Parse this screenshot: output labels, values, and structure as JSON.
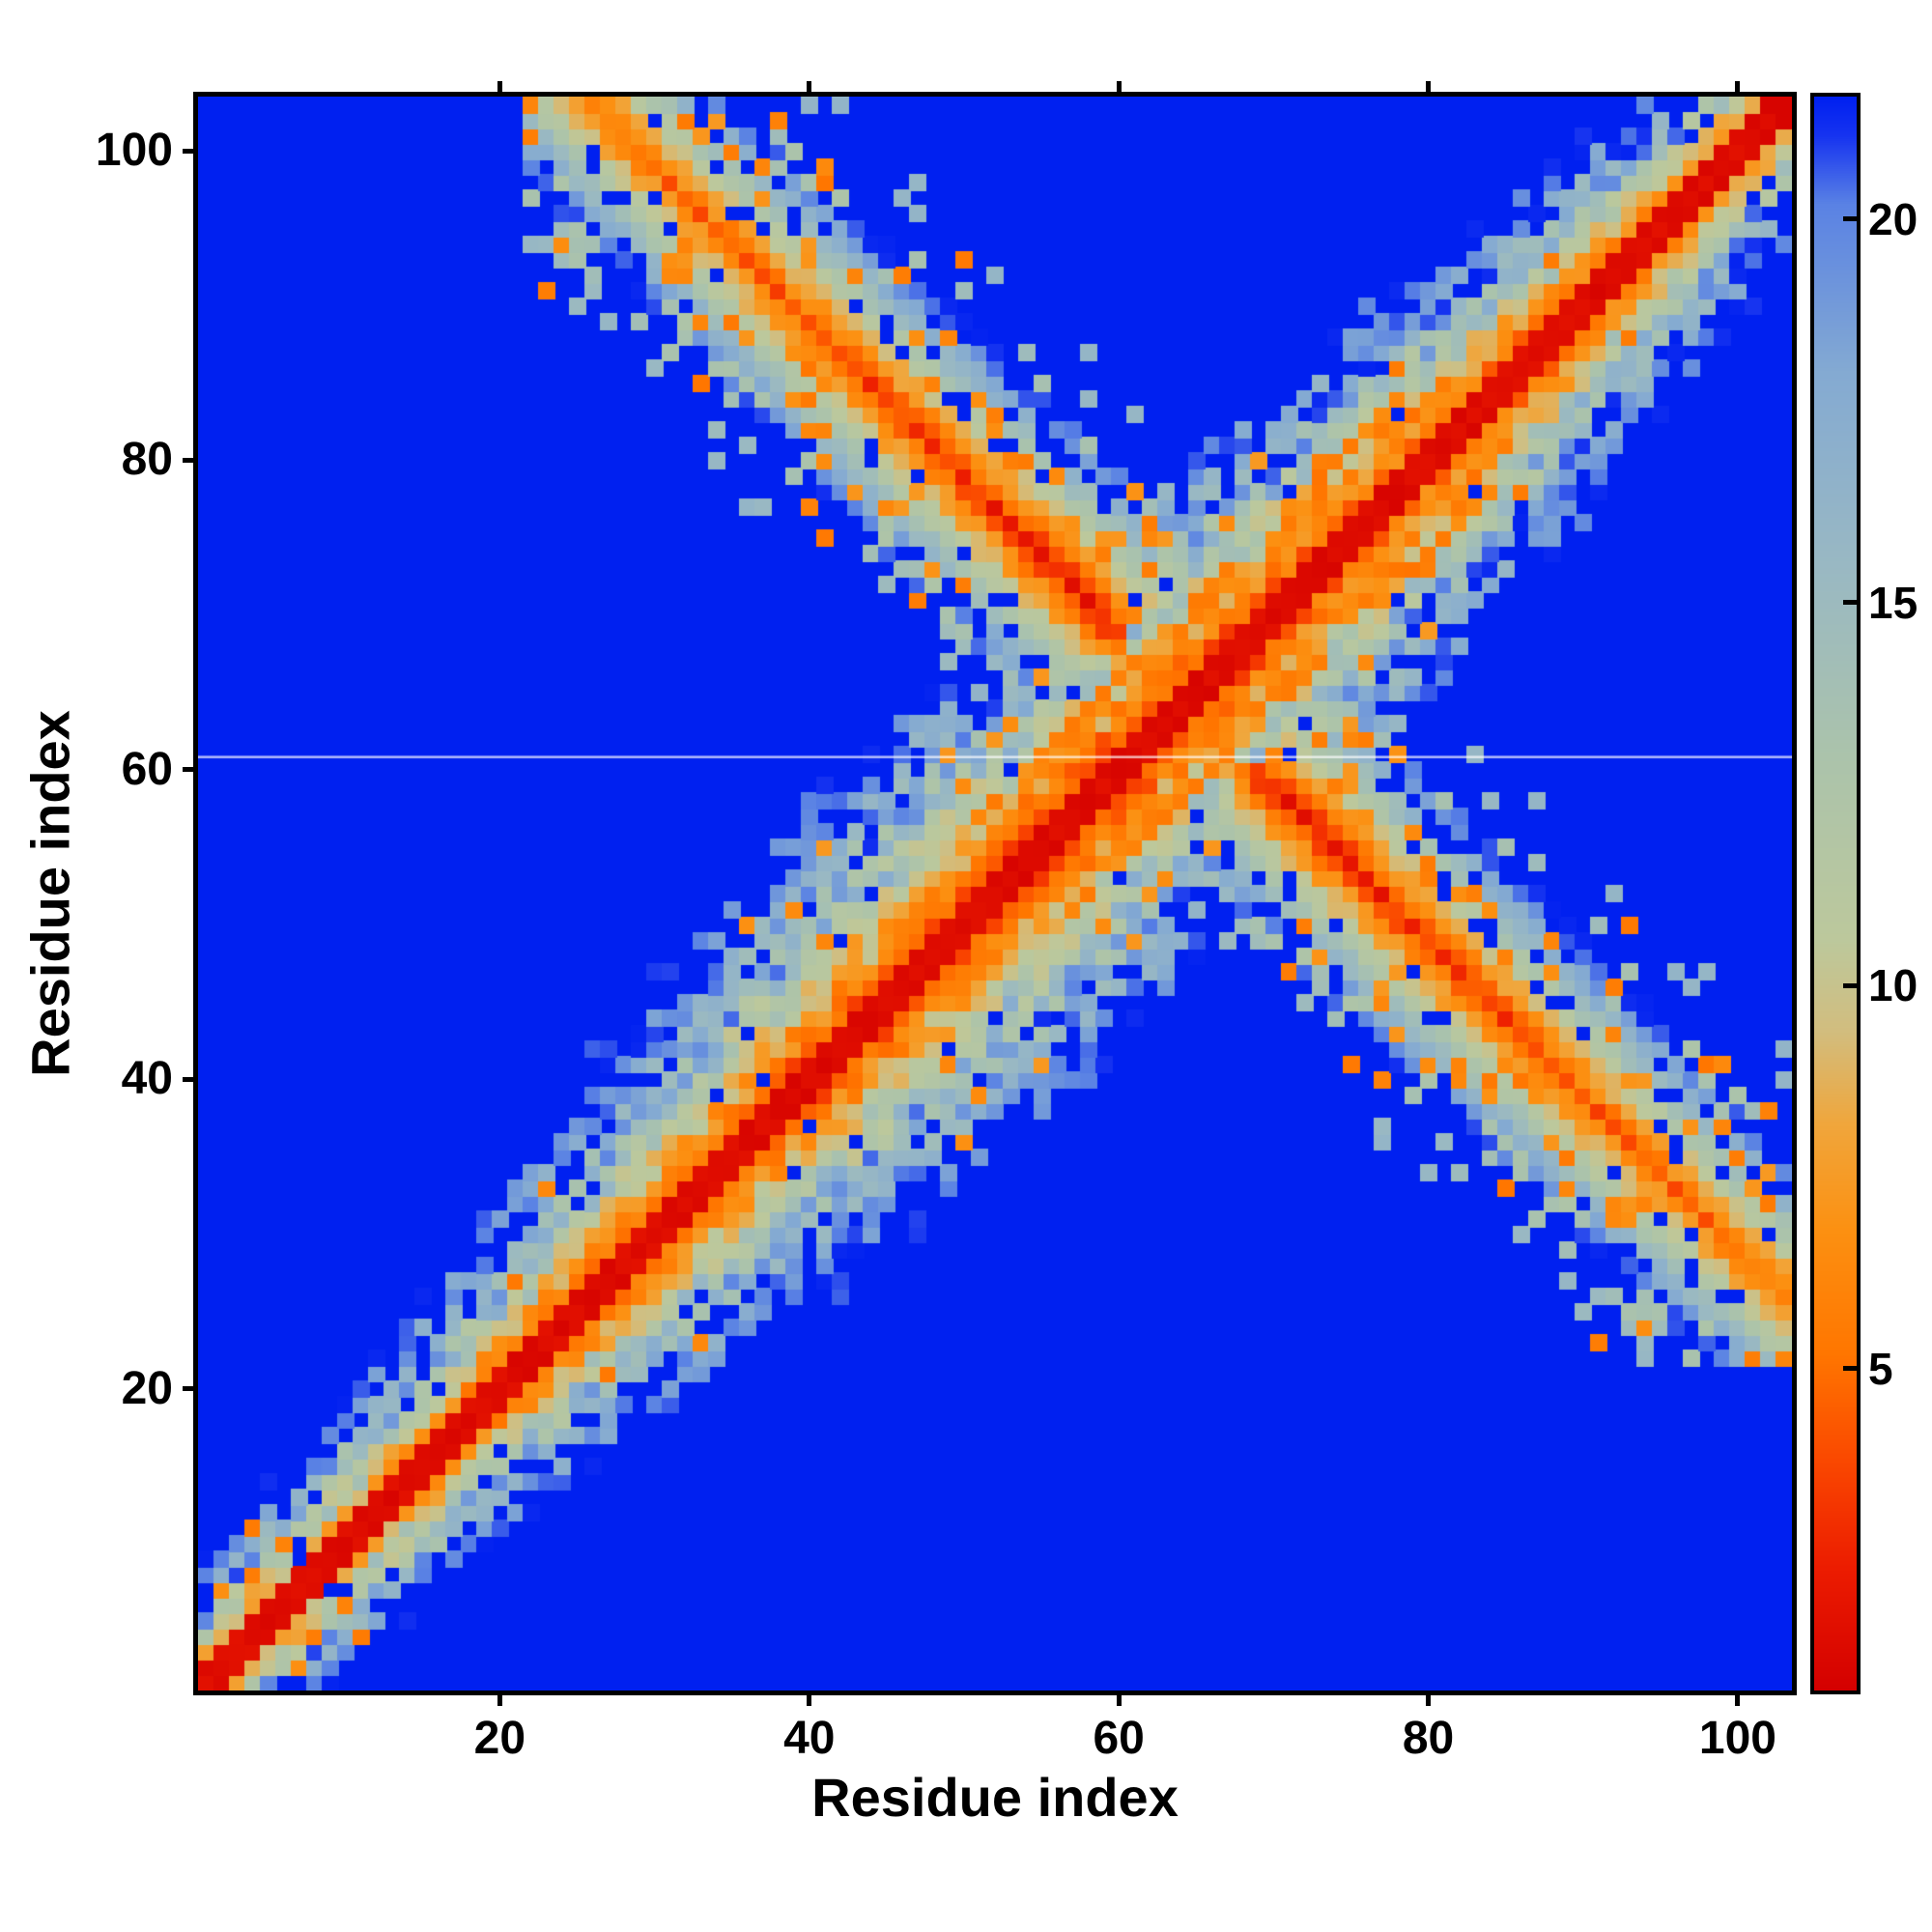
{
  "figure": {
    "background": "#ffffff"
  },
  "axes": {
    "x_ticks": [
      20,
      40,
      60,
      80,
      100
    ],
    "y_ticks": [
      20,
      40,
      60,
      80,
      100
    ],
    "range_min": 1,
    "range_max": 103
  },
  "colorbar": {
    "ticks": [
      5,
      10,
      15,
      20
    ]
  },
  "chart_data": {
    "type": "heatmap",
    "title": "",
    "xlabel": "Residue index",
    "ylabel": "Residue index",
    "n_residues": 103,
    "x_range": [
      1,
      103
    ],
    "y_range": [
      1,
      103
    ],
    "vmin": 0.8,
    "vmax": 21.6,
    "colorbar_ticks": [
      5,
      10,
      15,
      20
    ],
    "legend": "none",
    "grid": false,
    "description": "Symmetric residue-residue distance map of a 103-residue protein. Red diagonal band (short distances) of varying width, widest near residues 45-75; an antiparallel anti-diagonal contact band runs from about (25,103) to (103,25), crossing the main diagonal near residue 64; scattered blue holes and orange speckles along both bands; far-off-diagonal background saturated at maximum distance (blue); faint white horizontal artifact line near residue 60.",
    "colormap": [
      [
        0.8,
        "#d40000"
      ],
      [
        2.4,
        "#ec1c00"
      ],
      [
        3.8,
        "#fa4800"
      ],
      [
        5.2,
        "#ff7600"
      ],
      [
        6.8,
        "#fc9011"
      ],
      [
        8.2,
        "#f0a63c"
      ],
      [
        9.4,
        "#d2bd7e"
      ],
      [
        10.6,
        "#bcc89c"
      ],
      [
        13.0,
        "#abc3ab"
      ],
      [
        15.5,
        "#99b8c3"
      ],
      [
        18.0,
        "#84aad2"
      ],
      [
        20.2,
        "#5a82e4"
      ],
      [
        21.1,
        "#1633f0"
      ],
      [
        21.6,
        "#0020f0"
      ]
    ],
    "structure": {
      "seed": 7,
      "antidiagonal_sum": 129,
      "diag_base": 3.2,
      "diag_extra": 7.0,
      "diag_center": 57,
      "diag_sigma": 26,
      "helix_lo": 52,
      "helix_hi": 84,
      "anti_half": 9,
      "anti_min_index": 22,
      "anti_gap": 8,
      "blue_hole_p": 0.055,
      "orange_speckle_p": 0.05,
      "missing_row": 60.4
    }
  }
}
